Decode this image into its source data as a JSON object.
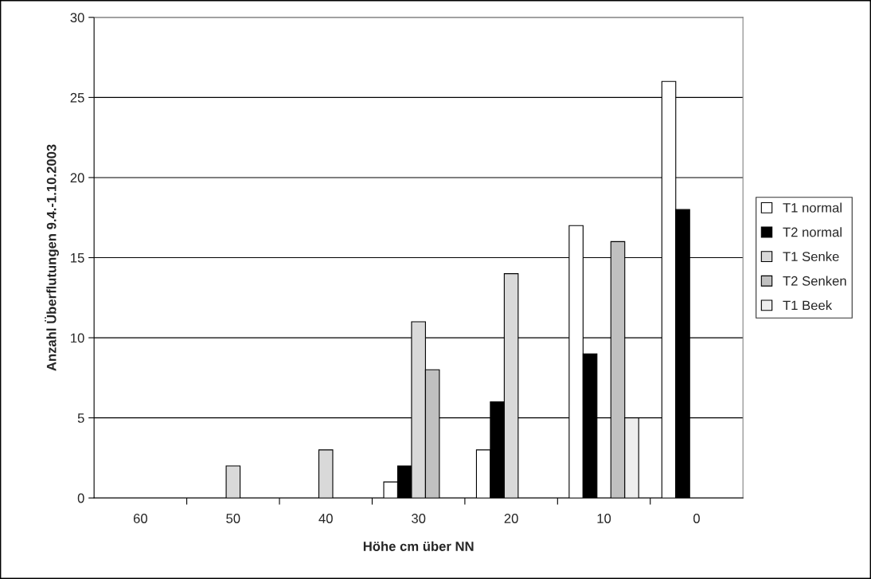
{
  "chart_data": {
    "type": "bar",
    "xlabel": "Höhe cm über NN",
    "ylabel": "Anzahl Überflutungen 9.4.-1.10.2003",
    "categories": [
      "60",
      "50",
      "40",
      "30",
      "20",
      "10",
      "0"
    ],
    "series": [
      {
        "name": "T1 normal",
        "color": "#ffffff",
        "values": [
          null,
          null,
          null,
          1,
          3,
          17,
          26
        ]
      },
      {
        "name": "T2 normal",
        "color": "#000000",
        "values": [
          null,
          null,
          null,
          2,
          6,
          9,
          18
        ]
      },
      {
        "name": "T1 Senke",
        "color": "#d9d9d9",
        "values": [
          null,
          2,
          3,
          11,
          14,
          null,
          null
        ]
      },
      {
        "name": "T2 Senken",
        "color": "#c0c0c0",
        "values": [
          null,
          null,
          null,
          8,
          null,
          16,
          null
        ]
      },
      {
        "name": "T1 Beek",
        "color": "#eeeeee",
        "values": [
          null,
          null,
          null,
          null,
          null,
          5,
          null
        ]
      }
    ],
    "ylim": [
      0,
      30
    ],
    "yticks": [
      0,
      5,
      10,
      15,
      20,
      25,
      30
    ],
    "grid": "y",
    "legend": "right"
  }
}
